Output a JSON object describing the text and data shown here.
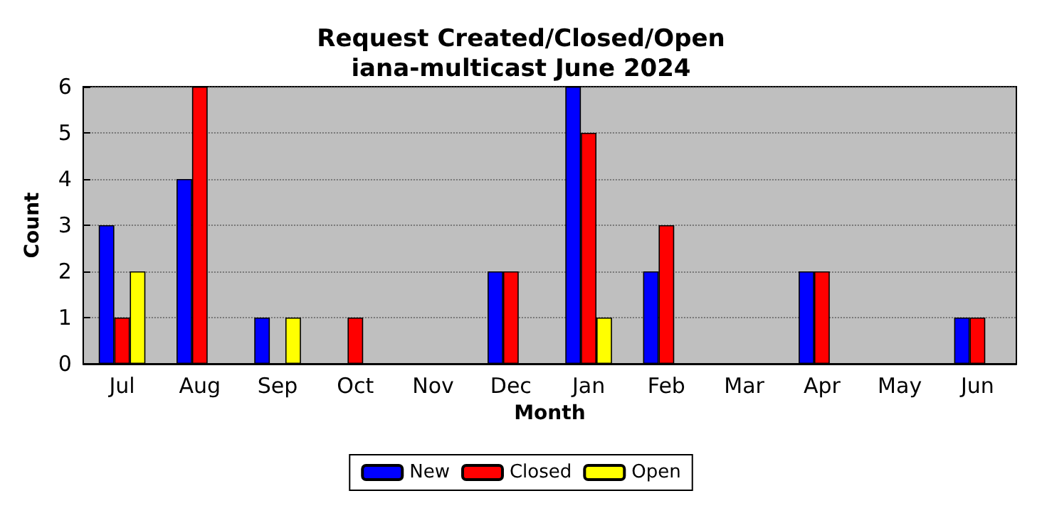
{
  "chart_data": {
    "type": "bar",
    "title": "Request Created/Closed/Open\niana-multicast June 2024",
    "xlabel": "Month",
    "ylabel": "Count",
    "categories": [
      "Jul",
      "Aug",
      "Sep",
      "Oct",
      "Nov",
      "Dec",
      "Jan",
      "Feb",
      "Mar",
      "Apr",
      "May",
      "Jun"
    ],
    "series": [
      {
        "name": "New",
        "color": "#0000ff",
        "values": [
          3,
          4,
          1,
          0,
          0,
          2,
          6,
          2,
          0,
          2,
          0,
          1
        ]
      },
      {
        "name": "Closed",
        "color": "#ff0000",
        "values": [
          1,
          6,
          0,
          1,
          0,
          2,
          5,
          3,
          0,
          2,
          0,
          1
        ]
      },
      {
        "name": "Open",
        "color": "#ffff00",
        "values": [
          2,
          0,
          1,
          0,
          0,
          0,
          1,
          0,
          0,
          0,
          0,
          0
        ]
      }
    ],
    "ylim": [
      0,
      6
    ],
    "yticks": [
      0,
      1,
      2,
      3,
      4,
      5,
      6
    ],
    "grid": "y",
    "legend": "bottom"
  }
}
